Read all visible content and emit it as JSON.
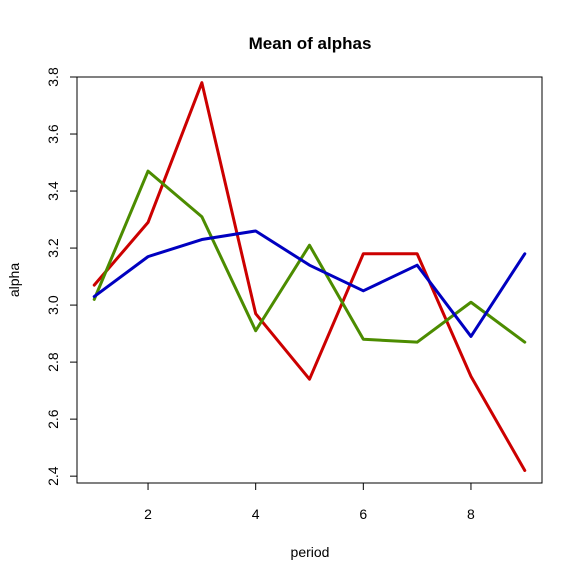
{
  "chart_data": {
    "type": "line",
    "title": "Mean of alphas",
    "xlabel": "period",
    "ylabel": "alpha",
    "xlim": [
      0.68,
      9.32
    ],
    "ylim": [
      2.376,
      3.8
    ],
    "x_ticks": [
      2,
      4,
      6,
      8
    ],
    "y_ticks": [
      2.4,
      2.6,
      2.8,
      3.0,
      3.2,
      3.4,
      3.6,
      3.8
    ],
    "y_tick_labels": [
      "2.4",
      "2.6",
      "2.8",
      "3.0",
      "3.2",
      "3.4",
      "3.6",
      "3.8"
    ],
    "x": [
      1,
      2,
      3,
      4,
      5,
      6,
      7,
      8,
      9
    ],
    "series": [
      {
        "color": "#CC0000",
        "values": [
          3.07,
          3.29,
          3.78,
          2.97,
          2.74,
          3.18,
          3.18,
          2.75,
          2.42
        ]
      },
      {
        "color": "#4C8C00",
        "values": [
          3.02,
          3.47,
          3.31,
          2.91,
          3.21,
          2.88,
          2.87,
          3.01,
          2.87
        ]
      },
      {
        "color": "#0000C0",
        "values": [
          3.03,
          3.17,
          3.23,
          3.26,
          3.14,
          3.05,
          3.14,
          2.89,
          3.18
        ]
      }
    ],
    "grid": false,
    "legend": "none"
  }
}
